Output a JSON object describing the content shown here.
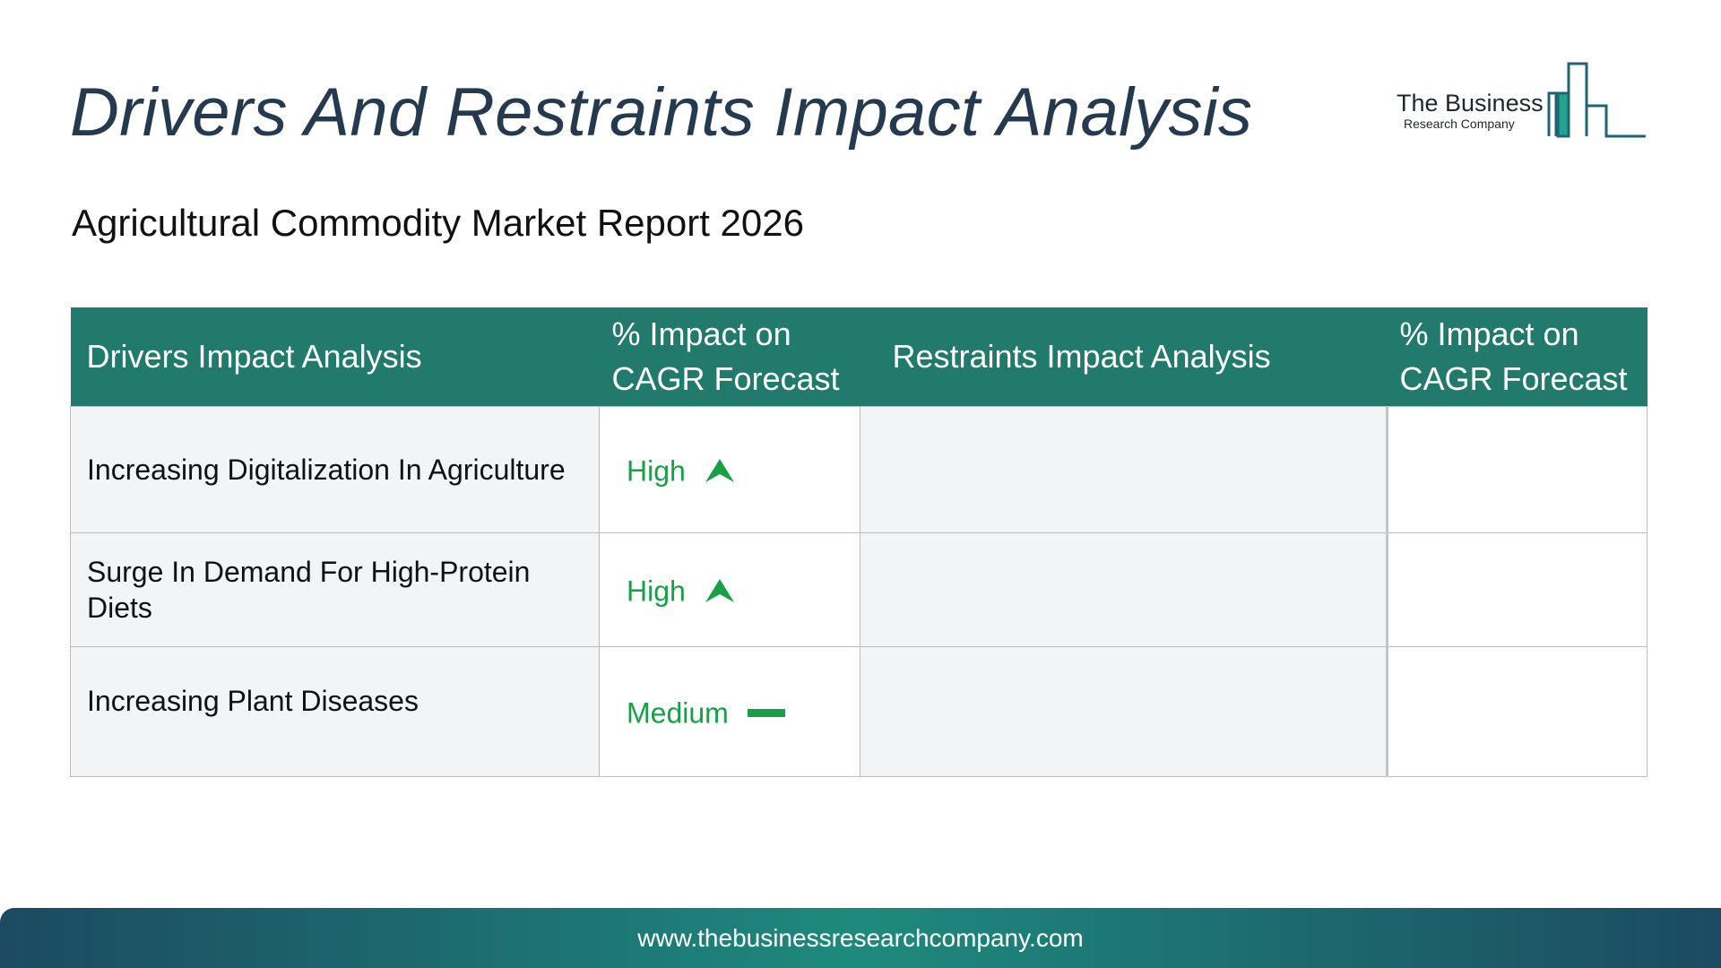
{
  "title": "Drivers And Restraints Impact Analysis",
  "subtitle": "Agricultural Commodity Market Report 2026",
  "logo": {
    "name": "The Business",
    "tagline": "Research Company",
    "icon": "bar-chart-building-icon"
  },
  "table": {
    "headers": {
      "drivers": "Drivers Impact Analysis",
      "drivers_impact": "% Impact on CAGR Forecast",
      "restraints": "Restraints Impact Analysis",
      "restraints_impact": "% Impact on CAGR Forecast"
    },
    "rows": [
      {
        "driver": "Increasing Digitalization In Agriculture",
        "impact": "High",
        "impact_icon": "arrow-up-icon",
        "restraint": "",
        "restraint_impact": ""
      },
      {
        "driver": "Surge In Demand For High-Protein Diets",
        "impact": "High",
        "impact_icon": "arrow-up-icon",
        "restraint": "",
        "restraint_impact": ""
      },
      {
        "driver": "Increasing Plant Diseases",
        "impact": "Medium",
        "impact_icon": "dash-icon",
        "restraint": "",
        "restraint_impact": ""
      }
    ]
  },
  "footer": {
    "url": "www.thebusinessresearchcompany.com"
  },
  "colors": {
    "header_bg": "#217a6b",
    "title": "#253a4e",
    "impact_green": "#18a046",
    "row_bg": "#f2f4f6",
    "footer_gradient": [
      "#1b4a61",
      "#1e8a7d"
    ]
  }
}
